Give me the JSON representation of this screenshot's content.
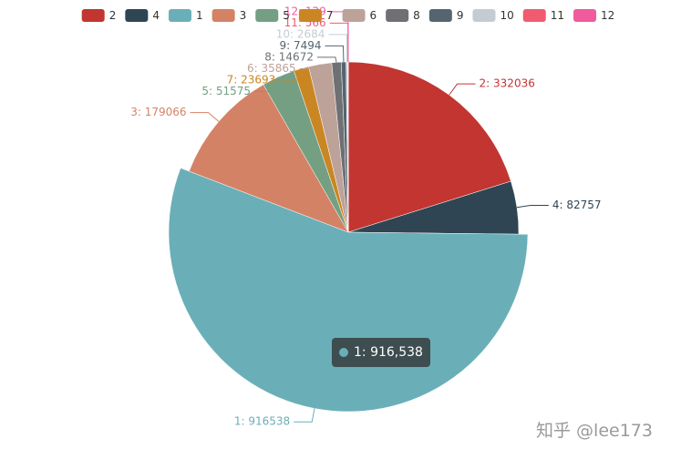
{
  "chart_data": {
    "type": "pie",
    "categories": [
      "2",
      "4",
      "1",
      "3",
      "5",
      "7",
      "6",
      "8",
      "9",
      "10",
      "11",
      "12"
    ],
    "values": [
      332036,
      82757,
      916538,
      179066,
      51575,
      23693,
      35865,
      14672,
      7494,
      2684,
      566,
      129
    ],
    "value_labels": [
      "2: 332036",
      "4: 82757",
      "1: 916538",
      "3: 179066",
      "5: 51575",
      "7: 23693",
      "6: 35865",
      "8: 14672",
      "9: 7494",
      "10: 2684",
      "11: 566",
      "12: 129"
    ],
    "colors": [
      "#c23531",
      "#2f4554",
      "#6aafb8",
      "#d48265",
      "#749f83",
      "#ca8622",
      "#bda29a",
      "#6e7074",
      "#546570",
      "#c4ccd3",
      "#f05b72",
      "#ef5b9c"
    ],
    "legend": "top",
    "highlighted": 2,
    "tooltip": "1: 916,538"
  },
  "watermark": "知乎 @lee173"
}
